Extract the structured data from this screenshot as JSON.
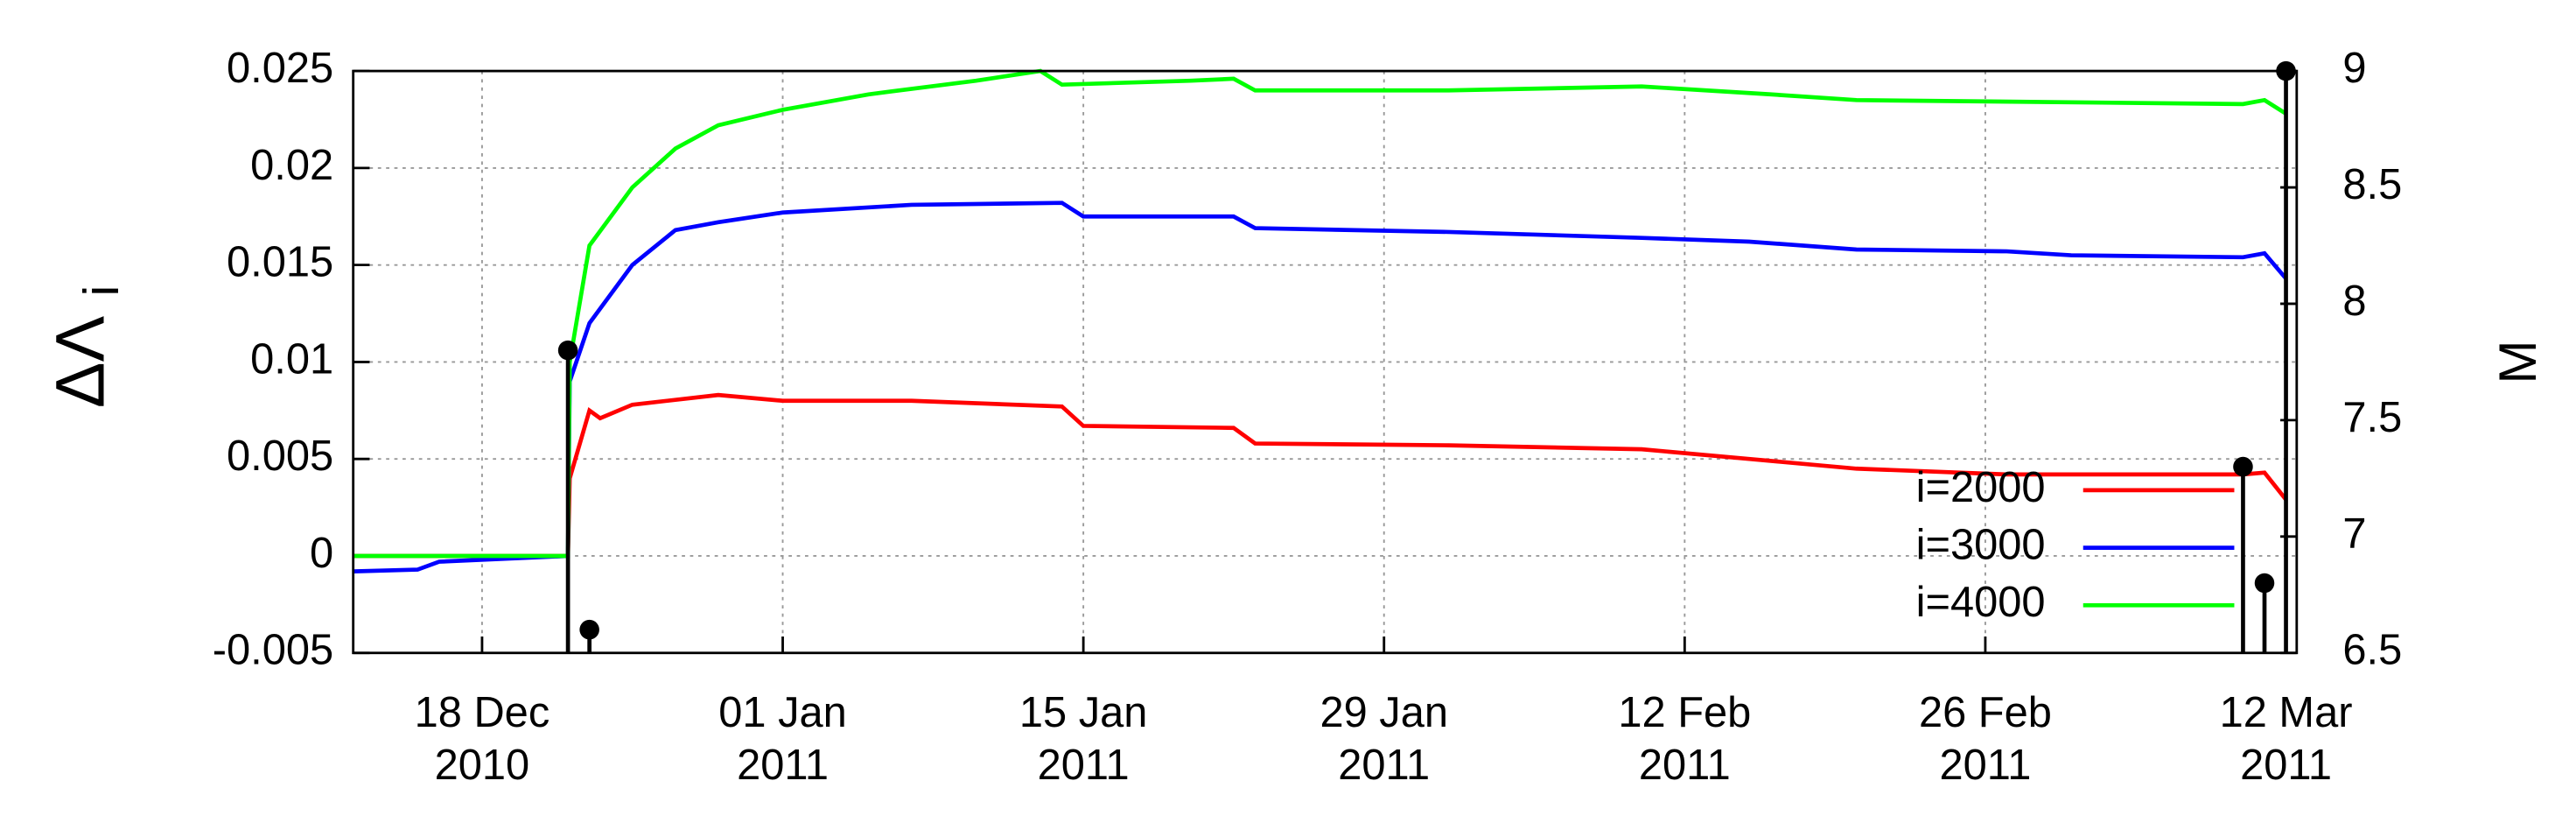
{
  "chart_data": {
    "type": "line",
    "ylabel": {
      "base": "ΔΛ",
      "sub": "i"
    },
    "y2label": "M",
    "xlim": [
      "2010-12-12",
      "2011-03-12T12:00"
    ],
    "xticks": [
      {
        "value": "2010-12-18",
        "label": "18 Dec 2010"
      },
      {
        "value": "2011-01-01",
        "label": "01 Jan 2011"
      },
      {
        "value": "2011-01-15",
        "label": "15 Jan 2011"
      },
      {
        "value": "2011-01-29",
        "label": "29 Jan 2011"
      },
      {
        "value": "2011-02-12",
        "label": "12 Feb 2011"
      },
      {
        "value": "2011-02-26",
        "label": "26 Feb 2011"
      },
      {
        "value": "2011-03-12",
        "label": "12 Mar 2011"
      }
    ],
    "ylim": [
      -0.005,
      0.025
    ],
    "yticks": [
      -0.005,
      0,
      0.005,
      0.01,
      0.015,
      0.02,
      0.025
    ],
    "y2lim": [
      6.5,
      9
    ],
    "y2ticks": [
      6.5,
      7,
      7.5,
      8,
      8.5,
      9
    ],
    "grid": true,
    "legend": "lower right",
    "series": [
      {
        "name": "i=2000",
        "color": "#ff0000",
        "x": [
          "2010-12-12",
          "2010-12-22",
          "2010-12-22T02:00",
          "2010-12-23",
          "2010-12-23T12:00",
          "2010-12-25",
          "2010-12-29",
          "2011-01-01",
          "2011-01-07",
          "2011-01-14",
          "2011-01-15",
          "2011-01-22",
          "2011-01-23",
          "2011-02-01",
          "2011-02-10",
          "2011-02-15",
          "2011-02-20",
          "2011-02-27",
          "2011-03-10",
          "2011-03-11",
          "2011-03-12"
        ],
        "values": [
          0,
          0,
          0.004,
          0.0075,
          0.0071,
          0.0078,
          0.0083,
          0.008,
          0.008,
          0.0077,
          0.0067,
          0.0066,
          0.0058,
          0.0057,
          0.0055,
          0.005,
          0.0045,
          0.0042,
          0.0042,
          0.0043,
          0.0029
        ]
      },
      {
        "name": "i=3000",
        "color": "#0000ff",
        "x": [
          "2010-12-12",
          "2010-12-15",
          "2010-12-16",
          "2010-12-22",
          "2010-12-22T02:00",
          "2010-12-23",
          "2010-12-25",
          "2010-12-27",
          "2010-12-29",
          "2011-01-01",
          "2011-01-07",
          "2011-01-14",
          "2011-01-15",
          "2011-01-22",
          "2011-01-23",
          "2011-02-01",
          "2011-02-10",
          "2011-02-15",
          "2011-02-20",
          "2011-02-27",
          "2011-03-02",
          "2011-03-10",
          "2011-03-11",
          "2011-03-12"
        ],
        "values": [
          -0.0008,
          -0.0007,
          -0.0003,
          0,
          0.009,
          0.012,
          0.015,
          0.0168,
          0.0172,
          0.0177,
          0.0181,
          0.0182,
          0.0175,
          0.0175,
          0.0169,
          0.0167,
          0.0164,
          0.0162,
          0.0158,
          0.0157,
          0.0155,
          0.0154,
          0.0156,
          0.0143
        ]
      },
      {
        "name": "i=4000",
        "color": "#00ff00",
        "x": [
          "2010-12-12",
          "2010-12-22",
          "2010-12-22T02:00",
          "2010-12-23",
          "2010-12-25",
          "2010-12-27",
          "2010-12-29",
          "2011-01-01",
          "2011-01-05",
          "2011-01-10",
          "2011-01-13",
          "2011-01-14",
          "2011-01-20",
          "2011-01-22",
          "2011-01-23",
          "2011-02-01",
          "2011-02-10",
          "2011-02-16",
          "2011-02-20",
          "2011-03-10",
          "2011-03-11",
          "2011-03-12"
        ],
        "values": [
          0,
          0,
          0.01,
          0.016,
          0.019,
          0.021,
          0.0222,
          0.023,
          0.0238,
          0.0245,
          0.025,
          0.0243,
          0.0245,
          0.0246,
          0.024,
          0.024,
          0.0242,
          0.0238,
          0.0235,
          0.0233,
          0.0235,
          0.0228
        ]
      },
      {
        "type": "stem",
        "axis": "y2",
        "color": "#000000",
        "x": [
          "2010-12-22",
          "2010-12-23",
          "2011-03-10",
          "2011-03-11",
          "2011-03-12"
        ],
        "values": [
          7.8,
          6.6,
          7.3,
          6.8,
          9
        ]
      }
    ]
  }
}
